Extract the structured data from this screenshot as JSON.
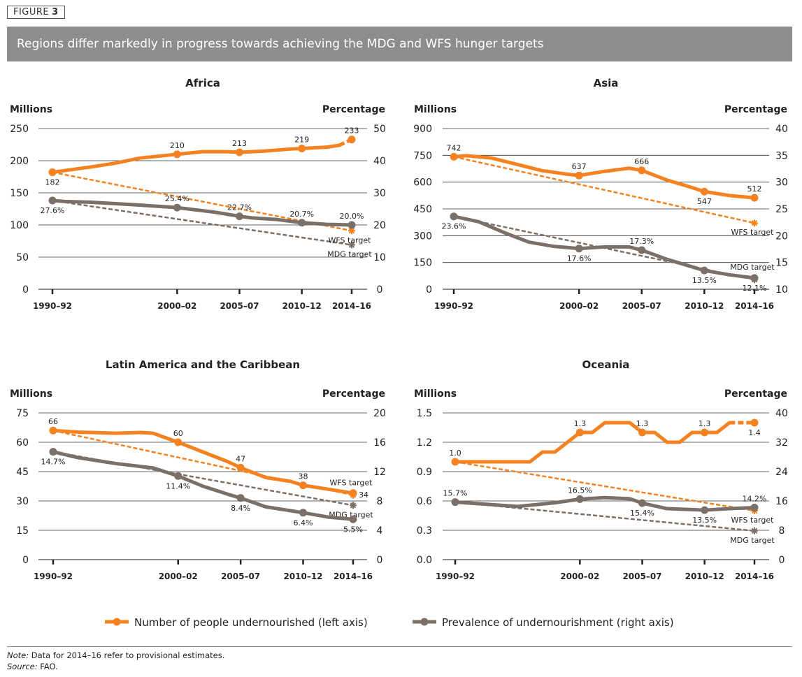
{
  "figure": {
    "label": "FIGURE",
    "number": "3"
  },
  "title": "Regions differ markedly in progress towards achieving the MDG and WFS hunger targets",
  "legend": [
    {
      "label": "Number of people undernourished (left axis)",
      "color": "#f58220"
    },
    {
      "label": "Prevalence of undernourishment (right axis)",
      "color": "#7b6f68"
    }
  ],
  "note": {
    "prefix": "Note:",
    "text": " Data for 2014–16 refer to provisional estimates."
  },
  "source": {
    "prefix": "Source:",
    "text": " FAO."
  },
  "colors": {
    "orange": "#f58220",
    "grey": "#7b6f68"
  },
  "chart_data": [
    {
      "type": "line",
      "title": "Africa",
      "ylabel_left": "Millions",
      "ylabel_right": "Percentage",
      "ylim_left": [
        0,
        250
      ],
      "yticks_left": [
        0,
        50,
        100,
        150,
        200,
        250
      ],
      "ylim_right": [
        0,
        50
      ],
      "yticks_right": [
        0,
        10,
        20,
        30,
        40,
        50
      ],
      "xticks": [
        {
          "x": 1990,
          "label": "1990–92"
        },
        {
          "x": 2000,
          "label": "2000–02"
        },
        {
          "x": 2005,
          "label": "2005–07"
        },
        {
          "x": 2010,
          "label": "2010–12"
        },
        {
          "x": 2014,
          "label": "2014–16"
        }
      ],
      "grid": true,
      "millions": {
        "points": [
          [
            1990,
            182
          ],
          [
            1993,
            190
          ],
          [
            1995,
            196
          ],
          [
            1997,
            204
          ],
          [
            2000,
            210
          ],
          [
            2002,
            214
          ],
          [
            2004,
            214
          ],
          [
            2005,
            213
          ],
          [
            2007,
            215
          ],
          [
            2009,
            218
          ],
          [
            2010,
            219
          ],
          [
            2012,
            221
          ],
          [
            2013,
            224
          ],
          [
            2014,
            233
          ]
        ],
        "provisional_from": 2013,
        "labels": [
          {
            "x": 1990,
            "y": 182,
            "text": "182",
            "pos": "below"
          },
          {
            "x": 2000,
            "y": 210,
            "text": "210",
            "pos": "above"
          },
          {
            "x": 2005,
            "y": 213,
            "text": "213",
            "pos": "above"
          },
          {
            "x": 2010,
            "y": 219,
            "text": "219",
            "pos": "above"
          },
          {
            "x": 2014,
            "y": 233,
            "text": "233",
            "pos": "above"
          }
        ],
        "target": {
          "name": "WFS target",
          "from": [
            1990,
            182
          ],
          "to": [
            2014,
            91
          ],
          "pos": "below"
        }
      },
      "prevalence": {
        "points": [
          [
            1990,
            27.6
          ],
          [
            1991,
            27.3
          ],
          [
            1993,
            27.1
          ],
          [
            1997,
            26.2
          ],
          [
            2000,
            25.4
          ],
          [
            2003,
            24
          ],
          [
            2005,
            22.7
          ],
          [
            2006,
            22.2
          ],
          [
            2008,
            21.7
          ],
          [
            2010,
            20.7
          ],
          [
            2012,
            20.2
          ],
          [
            2014,
            20.0
          ]
        ],
        "labels": [
          {
            "x": 1990,
            "y": 27.6,
            "text": "27.6%",
            "pos": "below"
          },
          {
            "x": 2000,
            "y": 25.4,
            "text": "25.4%",
            "pos": "above"
          },
          {
            "x": 2005,
            "y": 22.7,
            "text": "22.7%",
            "pos": "above"
          },
          {
            "x": 2010,
            "y": 20.7,
            "text": "20.7%",
            "pos": "above"
          },
          {
            "x": 2014,
            "y": 20.0,
            "text": "20.0%",
            "pos": "above"
          }
        ],
        "target": {
          "name": "MDG target",
          "from": [
            1990,
            27.6
          ],
          "to": [
            2014,
            13.8
          ],
          "pos": "below"
        }
      }
    },
    {
      "type": "line",
      "title": "Asia",
      "ylabel_left": "Millions",
      "ylabel_right": "Percentage",
      "ylim_left": [
        0,
        900
      ],
      "yticks_left": [
        0,
        150,
        300,
        450,
        600,
        750,
        900
      ],
      "ylim_right": [
        10,
        40
      ],
      "yticks_right": [
        10,
        15,
        20,
        25,
        30,
        35,
        40
      ],
      "xticks": [
        {
          "x": 1990,
          "label": "1990–92"
        },
        {
          "x": 2000,
          "label": "2000–02"
        },
        {
          "x": 2005,
          "label": "2005–07"
        },
        {
          "x": 2010,
          "label": "2010–12"
        },
        {
          "x": 2014,
          "label": "2014–16"
        }
      ],
      "grid": true,
      "millions": {
        "points": [
          [
            1990,
            742
          ],
          [
            1991,
            748
          ],
          [
            1993,
            735
          ],
          [
            1995,
            700
          ],
          [
            1997,
            665
          ],
          [
            1999,
            645
          ],
          [
            2000,
            637
          ],
          [
            2002,
            660
          ],
          [
            2004,
            678
          ],
          [
            2005,
            666
          ],
          [
            2007,
            612
          ],
          [
            2009,
            570
          ],
          [
            2010,
            547
          ],
          [
            2012,
            525
          ],
          [
            2014,
            512
          ]
        ],
        "labels": [
          {
            "x": 1990,
            "y": 742,
            "text": "742",
            "pos": "above"
          },
          {
            "x": 2000,
            "y": 637,
            "text": "637",
            "pos": "above"
          },
          {
            "x": 2005,
            "y": 666,
            "text": "666",
            "pos": "above"
          },
          {
            "x": 2010,
            "y": 547,
            "text": "547",
            "pos": "below"
          },
          {
            "x": 2014,
            "y": 512,
            "text": "512",
            "pos": "above"
          }
        ],
        "target": {
          "name": "WFS target",
          "from": [
            1990,
            742
          ],
          "to": [
            2014,
            371
          ],
          "pos": "below"
        }
      },
      "prevalence": {
        "points": [
          [
            1990,
            23.6
          ],
          [
            1992,
            22.6
          ],
          [
            1994,
            20.6
          ],
          [
            1996,
            18.8
          ],
          [
            1998,
            18.0
          ],
          [
            2000,
            17.6
          ],
          [
            2002,
            17.9
          ],
          [
            2004,
            17.9
          ],
          [
            2005,
            17.3
          ],
          [
            2007,
            15.6
          ],
          [
            2009,
            14.2
          ],
          [
            2010,
            13.5
          ],
          [
            2012,
            12.7
          ],
          [
            2014,
            12.1
          ]
        ],
        "labels": [
          {
            "x": 1990,
            "y": 23.6,
            "text": "23.6%",
            "pos": "below"
          },
          {
            "x": 2000,
            "y": 17.6,
            "text": "17.6%",
            "pos": "below"
          },
          {
            "x": 2005,
            "y": 17.3,
            "text": "17.3%",
            "pos": "above"
          },
          {
            "x": 2010,
            "y": 13.5,
            "text": "13.5%",
            "pos": "below"
          },
          {
            "x": 2014,
            "y": 12.1,
            "text": "12.1%",
            "pos": "below"
          }
        ],
        "target": {
          "name": "MDG target",
          "from": [
            1990,
            23.6
          ],
          "to": [
            2014,
            11.8
          ],
          "pos": "above"
        }
      }
    },
    {
      "type": "line",
      "title": "Latin America and the Caribbean",
      "ylabel_left": "Millions",
      "ylabel_right": "Percentage",
      "ylim_left": [
        0,
        75
      ],
      "yticks_left": [
        0,
        15,
        30,
        45,
        60,
        75
      ],
      "ylim_right": [
        0,
        20
      ],
      "yticks_right": [
        0,
        4,
        8,
        12,
        16,
        20
      ],
      "xticks": [
        {
          "x": 1990,
          "label": "1990–92"
        },
        {
          "x": 2000,
          "label": "2000–02"
        },
        {
          "x": 2005,
          "label": "2005–07"
        },
        {
          "x": 2010,
          "label": "2010–12"
        },
        {
          "x": 2014,
          "label": "2014–16"
        }
      ],
      "grid": true,
      "millions": {
        "points": [
          [
            1990,
            66
          ],
          [
            1992,
            65.2
          ],
          [
            1995,
            64.6
          ],
          [
            1997,
            65
          ],
          [
            1998,
            64.6
          ],
          [
            2000,
            60
          ],
          [
            2002,
            55
          ],
          [
            2004,
            50
          ],
          [
            2005,
            47
          ],
          [
            2007,
            42
          ],
          [
            2009,
            40
          ],
          [
            2010,
            38
          ],
          [
            2012,
            36
          ],
          [
            2014,
            34
          ]
        ],
        "labels": [
          {
            "x": 1990,
            "y": 66,
            "text": "66",
            "pos": "above"
          },
          {
            "x": 2000,
            "y": 60,
            "text": "60",
            "pos": "above"
          },
          {
            "x": 2005,
            "y": 47,
            "text": "47",
            "pos": "above"
          },
          {
            "x": 2010,
            "y": 38,
            "text": "38",
            "pos": "above"
          },
          {
            "x": 2014,
            "y": 34,
            "text": "34",
            "pos": "right"
          }
        ],
        "target": {
          "name": "WFS target",
          "from": [
            1990,
            66
          ],
          "to": [
            2014,
            33
          ],
          "pos": "above"
        }
      },
      "prevalence": {
        "points": [
          [
            1990,
            14.7
          ],
          [
            1992,
            13.9
          ],
          [
            1995,
            13.1
          ],
          [
            1998,
            12.5
          ],
          [
            2000,
            11.4
          ],
          [
            2002,
            10
          ],
          [
            2004,
            8.9
          ],
          [
            2005,
            8.4
          ],
          [
            2007,
            7.2
          ],
          [
            2010,
            6.4
          ],
          [
            2012,
            5.8
          ],
          [
            2014,
            5.5
          ]
        ],
        "labels": [
          {
            "x": 1990,
            "y": 14.7,
            "text": "14.7%",
            "pos": "below"
          },
          {
            "x": 2000,
            "y": 11.4,
            "text": "11.4%",
            "pos": "below"
          },
          {
            "x": 2005,
            "y": 8.4,
            "text": "8.4%",
            "pos": "below"
          },
          {
            "x": 2010,
            "y": 6.4,
            "text": "6.4%",
            "pos": "below"
          },
          {
            "x": 2014,
            "y": 5.5,
            "text": "5.5%",
            "pos": "below"
          }
        ],
        "target": {
          "name": "MDG target",
          "from": [
            1990,
            14.7
          ],
          "to": [
            2014,
            7.4
          ],
          "pos": "below"
        }
      }
    },
    {
      "type": "line",
      "title": "Oceania",
      "ylabel_left": "Millions",
      "ylabel_right": "Percentage",
      "ylim_left": [
        0,
        1.5
      ],
      "yticks_left": [
        "0.0",
        "0.3",
        "0.6",
        "0.9",
        "1.2",
        "1.5"
      ],
      "ylim_right": [
        0,
        40
      ],
      "yticks_right": [
        0,
        8,
        16,
        24,
        32,
        40
      ],
      "xticks": [
        {
          "x": 1990,
          "label": "1990–92"
        },
        {
          "x": 2000,
          "label": "2000–02"
        },
        {
          "x": 2005,
          "label": "2005–07"
        },
        {
          "x": 2010,
          "label": "2010–12"
        },
        {
          "x": 2014,
          "label": "2014–16"
        }
      ],
      "grid": true,
      "millions": {
        "points": [
          [
            1990,
            1.0
          ],
          [
            1996,
            1.0
          ],
          [
            1997,
            1.1
          ],
          [
            1998,
            1.1
          ],
          [
            2000,
            1.3
          ],
          [
            2001,
            1.3
          ],
          [
            2002,
            1.4
          ],
          [
            2004,
            1.4
          ],
          [
            2005,
            1.3
          ],
          [
            2006,
            1.3
          ],
          [
            2007,
            1.2
          ],
          [
            2008,
            1.2
          ],
          [
            2009,
            1.3
          ],
          [
            2011,
            1.3
          ],
          [
            2012,
            1.4
          ],
          [
            2014,
            1.4
          ]
        ],
        "provisional_from": 2012,
        "labels": [
          {
            "x": 1990,
            "y": 1.0,
            "text": "1.0",
            "pos": "above"
          },
          {
            "x": 2000,
            "y": 1.3,
            "text": "1.3",
            "pos": "above"
          },
          {
            "x": 2005,
            "y": 1.3,
            "text": "1.3",
            "pos": "above"
          },
          {
            "x": 2010,
            "y": 1.3,
            "text": "1.3",
            "pos": "above"
          },
          {
            "x": 2014,
            "y": 1.4,
            "text": "1.4",
            "pos": "below"
          }
        ],
        "target": {
          "name": "WFS target",
          "from": [
            1990,
            1.0
          ],
          "to": [
            2014,
            0.5
          ],
          "pos": "below"
        }
      },
      "prevalence": {
        "points": [
          [
            1990,
            15.7
          ],
          [
            1995,
            14.5
          ],
          [
            1998,
            15.5
          ],
          [
            2000,
            16.5
          ],
          [
            2002,
            16.9
          ],
          [
            2004,
            16.6
          ],
          [
            2005,
            15.4
          ],
          [
            2007,
            13.9
          ],
          [
            2010,
            13.5
          ],
          [
            2012,
            13.9
          ],
          [
            2014,
            14.2
          ]
        ],
        "labels": [
          {
            "x": 1990,
            "y": 15.7,
            "text": "15.7%",
            "pos": "above"
          },
          {
            "x": 2000,
            "y": 16.5,
            "text": "16.5%",
            "pos": "above"
          },
          {
            "x": 2005,
            "y": 15.4,
            "text": "15.4%",
            "pos": "below"
          },
          {
            "x": 2010,
            "y": 13.5,
            "text": "13.5%",
            "pos": "below"
          },
          {
            "x": 2014,
            "y": 14.2,
            "text": "14.2%",
            "pos": "above"
          }
        ],
        "target": {
          "name": "MDG target",
          "from": [
            1990,
            15.7
          ],
          "to": [
            2014,
            7.85
          ],
          "pos": "below"
        }
      }
    }
  ]
}
